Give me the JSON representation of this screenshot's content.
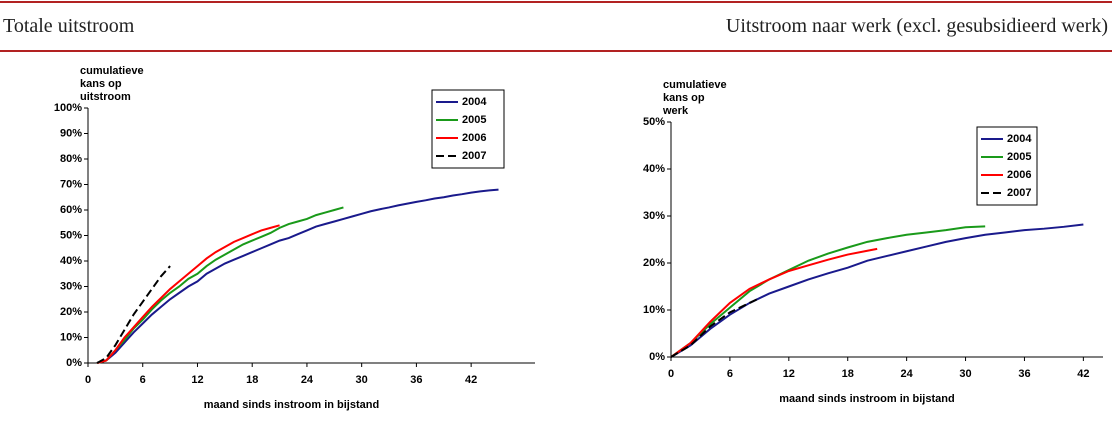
{
  "chart_data": [
    {
      "type": "line",
      "title": "Totale uitstroom",
      "ylabel": [
        "cumulatieve",
        "kans op",
        "uitstroom"
      ],
      "xlabel": "maand sinds instroom in bijstand",
      "xlim": [
        0,
        49
      ],
      "xticks": [
        0,
        6,
        12,
        18,
        24,
        30,
        36,
        42
      ],
      "ylim": [
        0,
        100
      ],
      "yticks": [
        {
          "value": 0,
          "label": "0%"
        },
        {
          "value": 10,
          "label": "10%"
        },
        {
          "value": 20,
          "label": "20%"
        },
        {
          "value": 30,
          "label": "30%"
        },
        {
          "value": 40,
          "label": "40%"
        },
        {
          "value": 50,
          "label": "50%"
        },
        {
          "value": 60,
          "label": "60%"
        },
        {
          "value": 70,
          "label": "70%"
        },
        {
          "value": 80,
          "label": "80%"
        },
        {
          "value": 90,
          "label": "90%"
        },
        {
          "value": 100,
          "label": "100%"
        }
      ],
      "legend": "upper right",
      "series": [
        {
          "name": "2004",
          "color": "#1a1a8c",
          "dashed": false,
          "x": [
            1,
            2,
            3,
            4,
            5,
            6,
            7,
            8,
            9,
            10,
            11,
            12,
            13,
            14,
            15,
            16,
            17,
            18,
            19,
            20,
            21,
            22,
            23,
            24,
            25,
            26,
            27,
            28,
            29,
            30,
            31,
            32,
            33,
            34,
            35,
            36,
            37,
            38,
            39,
            40,
            41,
            42,
            43,
            44,
            45
          ],
          "values": [
            0,
            1,
            4,
            8,
            12,
            15.5,
            19,
            22,
            25,
            27.5,
            30,
            32,
            35,
            37,
            39,
            40.5,
            42,
            43.5,
            45,
            46.5,
            48,
            49,
            50.5,
            52,
            53.5,
            54.5,
            55.5,
            56.5,
            57.5,
            58.5,
            59.5,
            60.3,
            61,
            61.8,
            62.5,
            63.2,
            63.8,
            64.5,
            65,
            65.7,
            66.2,
            66.8,
            67.3,
            67.7,
            68
          ]
        },
        {
          "name": "2005",
          "color": "#1a9a1a",
          "dashed": false,
          "x": [
            1,
            2,
            3,
            4,
            5,
            6,
            7,
            8,
            9,
            10,
            11,
            12,
            13,
            14,
            15,
            16,
            17,
            18,
            19,
            20,
            21,
            22,
            23,
            24,
            25,
            26,
            27,
            28
          ],
          "values": [
            0,
            1,
            5,
            9,
            13.5,
            17,
            21,
            24.5,
            27.5,
            30,
            33,
            35,
            38,
            40.5,
            42.5,
            44.5,
            46.5,
            48,
            49.5,
            51,
            53,
            54.5,
            55.5,
            56.5,
            58,
            59,
            60,
            61
          ]
        },
        {
          "name": "2006",
          "color": "#ff0000",
          "dashed": false,
          "x": [
            1,
            2,
            3,
            4,
            5,
            6,
            7,
            8,
            9,
            10,
            11,
            12,
            13,
            14,
            15,
            16,
            17,
            18,
            19,
            20,
            21
          ],
          "values": [
            0,
            1,
            5,
            10,
            14,
            18,
            22,
            25.5,
            29,
            32,
            35,
            38,
            41,
            43.5,
            45.5,
            47.5,
            49,
            50.5,
            52,
            53,
            54
          ]
        },
        {
          "name": "2007",
          "color": "#000000",
          "dashed": true,
          "x": [
            1,
            2,
            3,
            4,
            5,
            6,
            7,
            8,
            9
          ],
          "values": [
            0,
            2,
            7,
            13,
            19,
            24,
            29,
            34,
            38
          ]
        }
      ]
    },
    {
      "type": "line",
      "title": "Uitstroom naar werk (excl. gesubsidieerd werk)",
      "ylabel": [
        "cumulatieve",
        "kans op",
        "werk"
      ],
      "xlabel": "maand sinds instroom in bijstand",
      "xlim": [
        0,
        44
      ],
      "xticks": [
        0,
        6,
        12,
        18,
        24,
        30,
        36,
        42
      ],
      "ylim": [
        0,
        50
      ],
      "yticks": [
        {
          "value": 0,
          "label": "0%"
        },
        {
          "value": 10,
          "label": "10%"
        },
        {
          "value": 20,
          "label": "20%"
        },
        {
          "value": 30,
          "label": "30%"
        },
        {
          "value": 40,
          "label": "40%"
        },
        {
          "value": 50,
          "label": "50%"
        }
      ],
      "legend": "upper right",
      "series": [
        {
          "name": "2004",
          "color": "#1a1a8c",
          "dashed": false,
          "x": [
            0,
            2,
            4,
            6,
            8,
            10,
            12,
            14,
            16,
            18,
            20,
            22,
            24,
            26,
            28,
            30,
            32,
            34,
            36,
            38,
            40,
            42
          ],
          "values": [
            0,
            2.5,
            6,
            9,
            11.5,
            13.5,
            15,
            16.5,
            17.8,
            19,
            20.5,
            21.5,
            22.5,
            23.5,
            24.5,
            25.3,
            26,
            26.5,
            27,
            27.3,
            27.7,
            28.2
          ]
        },
        {
          "name": "2005",
          "color": "#1a9a1a",
          "dashed": false,
          "x": [
            0,
            2,
            4,
            6,
            8,
            10,
            12,
            14,
            16,
            18,
            20,
            22,
            24,
            26,
            28,
            30,
            32
          ],
          "values": [
            0,
            3,
            7,
            10.5,
            14,
            16.5,
            18.5,
            20.5,
            22,
            23.3,
            24.5,
            25.3,
            26,
            26.5,
            27,
            27.6,
            27.8
          ]
        },
        {
          "name": "2006",
          "color": "#ff0000",
          "dashed": false,
          "x": [
            0,
            2,
            4,
            6,
            8,
            10,
            12,
            14,
            16,
            18,
            20,
            21
          ],
          "values": [
            0,
            3,
            7.5,
            11.5,
            14.5,
            16.5,
            18.3,
            19.5,
            20.7,
            21.8,
            22.6,
            23
          ]
        },
        {
          "name": "2007",
          "color": "#000000",
          "dashed": true,
          "x": [
            0,
            2,
            4,
            6,
            8,
            9
          ],
          "values": [
            0,
            2.5,
            6.5,
            9.5,
            11.5,
            12.5
          ]
        }
      ]
    }
  ]
}
